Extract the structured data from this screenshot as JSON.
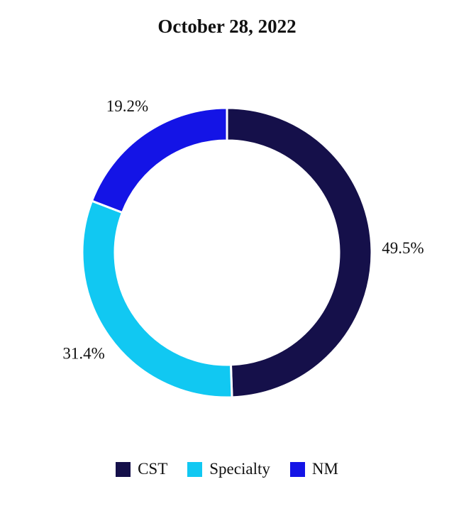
{
  "chart_data": {
    "type": "pie",
    "title": "October 28, 2022",
    "donut": true,
    "categories": [
      "CST",
      "Specialty",
      "NM"
    ],
    "values": [
      49.5,
      31.4,
      19.2
    ],
    "labels": [
      "49.5%",
      "31.4%",
      "19.2%"
    ],
    "colors": [
      "#15104a",
      "#11c8f2",
      "#1414e6"
    ],
    "legend_position": "bottom"
  }
}
